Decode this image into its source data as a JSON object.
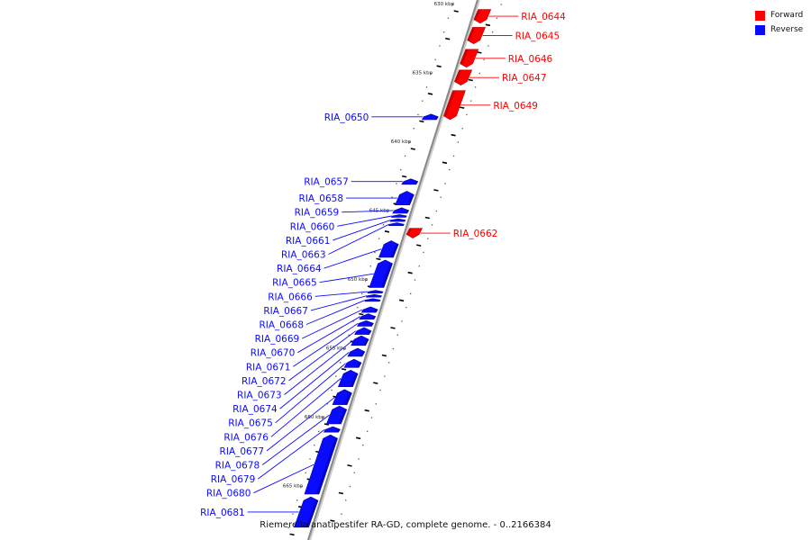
{
  "legend": [
    {
      "label": "Forward",
      "color": "#ff0000"
    },
    {
      "label": "Reverse",
      "color": "#0a0aff"
    }
  ],
  "colors": {
    "forward": "#ff0000",
    "reverse": "#0a0aff",
    "backbone": "#888888"
  },
  "footer": "Riemerella anatipestifer RA-GD, complete genome. - 0..2166384",
  "ticks": [
    {
      "kbp": 630,
      "label": "630 kbp"
    },
    {
      "kbp": 635,
      "label": "635 kbp"
    },
    {
      "kbp": 640,
      "label": "640 kbp"
    },
    {
      "kbp": 645,
      "label": "645 kbp"
    },
    {
      "kbp": 650,
      "label": "650 kbp"
    },
    {
      "kbp": 655,
      "label": "655 kbp"
    },
    {
      "kbp": 660,
      "label": "660 kbp"
    },
    {
      "kbp": 665,
      "label": "665 kbp"
    }
  ],
  "genes": [
    {
      "name": "RIA_0644",
      "strand": "forward",
      "start_kbp": 629.9,
      "end_kbp": 630.9
    },
    {
      "name": "RIA_0645",
      "strand": "forward",
      "start_kbp": 631.2,
      "end_kbp": 632.4
    },
    {
      "name": "RIA_0646",
      "strand": "forward",
      "start_kbp": 632.8,
      "end_kbp": 634.1
    },
    {
      "name": "RIA_0647",
      "strand": "forward",
      "start_kbp": 634.3,
      "end_kbp": 635.4
    },
    {
      "name": "RIA_0649",
      "strand": "forward",
      "start_kbp": 635.8,
      "end_kbp": 637.9
    },
    {
      "name": "RIA_0650",
      "strand": "reverse",
      "start_kbp": 637.5,
      "end_kbp": 637.9
    },
    {
      "name": "RIA_0657",
      "strand": "reverse",
      "start_kbp": 642.2,
      "end_kbp": 642.6
    },
    {
      "name": "RIA_0658",
      "strand": "reverse",
      "start_kbp": 643.1,
      "end_kbp": 644.1
    },
    {
      "name": "RIA_0659",
      "strand": "reverse",
      "start_kbp": 644.3,
      "end_kbp": 644.7
    },
    {
      "name": "RIA_0660",
      "strand": "reverse",
      "start_kbp": 644.8,
      "end_kbp": 645.0
    },
    {
      "name": "RIA_0661",
      "strand": "reverse",
      "start_kbp": 645.1,
      "end_kbp": 645.3
    },
    {
      "name": "RIA_0662",
      "strand": "forward",
      "start_kbp": 645.8,
      "end_kbp": 646.5
    },
    {
      "name": "RIA_0663",
      "strand": "reverse",
      "start_kbp": 645.4,
      "end_kbp": 645.6
    },
    {
      "name": "RIA_0664",
      "strand": "reverse",
      "start_kbp": 646.7,
      "end_kbp": 647.9
    },
    {
      "name": "RIA_0665",
      "strand": "reverse",
      "start_kbp": 648.1,
      "end_kbp": 650.1
    },
    {
      "name": "RIA_0666",
      "strand": "reverse",
      "start_kbp": 650.3,
      "end_kbp": 650.5
    },
    {
      "name": "RIA_0667",
      "strand": "reverse",
      "start_kbp": 650.6,
      "end_kbp": 650.8
    },
    {
      "name": "RIA_0668",
      "strand": "reverse",
      "start_kbp": 650.9,
      "end_kbp": 651.1
    },
    {
      "name": "RIA_0669",
      "strand": "reverse",
      "start_kbp": 651.5,
      "end_kbp": 651.9
    },
    {
      "name": "RIA_0670",
      "strand": "reverse",
      "start_kbp": 652.0,
      "end_kbp": 652.4
    },
    {
      "name": "RIA_0671",
      "strand": "reverse",
      "start_kbp": 652.5,
      "end_kbp": 652.9
    },
    {
      "name": "RIA_0672",
      "strand": "reverse",
      "start_kbp": 653.0,
      "end_kbp": 653.5
    },
    {
      "name": "RIA_0673",
      "strand": "reverse",
      "start_kbp": 653.6,
      "end_kbp": 654.3
    },
    {
      "name": "RIA_0674",
      "strand": "reverse",
      "start_kbp": 654.5,
      "end_kbp": 655.1
    },
    {
      "name": "RIA_0675",
      "strand": "reverse",
      "start_kbp": 655.3,
      "end_kbp": 655.9
    },
    {
      "name": "RIA_0676",
      "strand": "reverse",
      "start_kbp": 656.1,
      "end_kbp": 657.3
    },
    {
      "name": "RIA_0677",
      "strand": "reverse",
      "start_kbp": 657.5,
      "end_kbp": 658.6
    },
    {
      "name": "RIA_0678",
      "strand": "reverse",
      "start_kbp": 658.7,
      "end_kbp": 660.0
    },
    {
      "name": "RIA_0679",
      "strand": "reverse",
      "start_kbp": 660.2,
      "end_kbp": 660.6
    },
    {
      "name": "RIA_0680",
      "strand": "reverse",
      "start_kbp": 660.8,
      "end_kbp": 665.1
    },
    {
      "name": "RIA_0681",
      "strand": "reverse",
      "start_kbp": 665.3,
      "end_kbp": 667.5
    }
  ]
}
